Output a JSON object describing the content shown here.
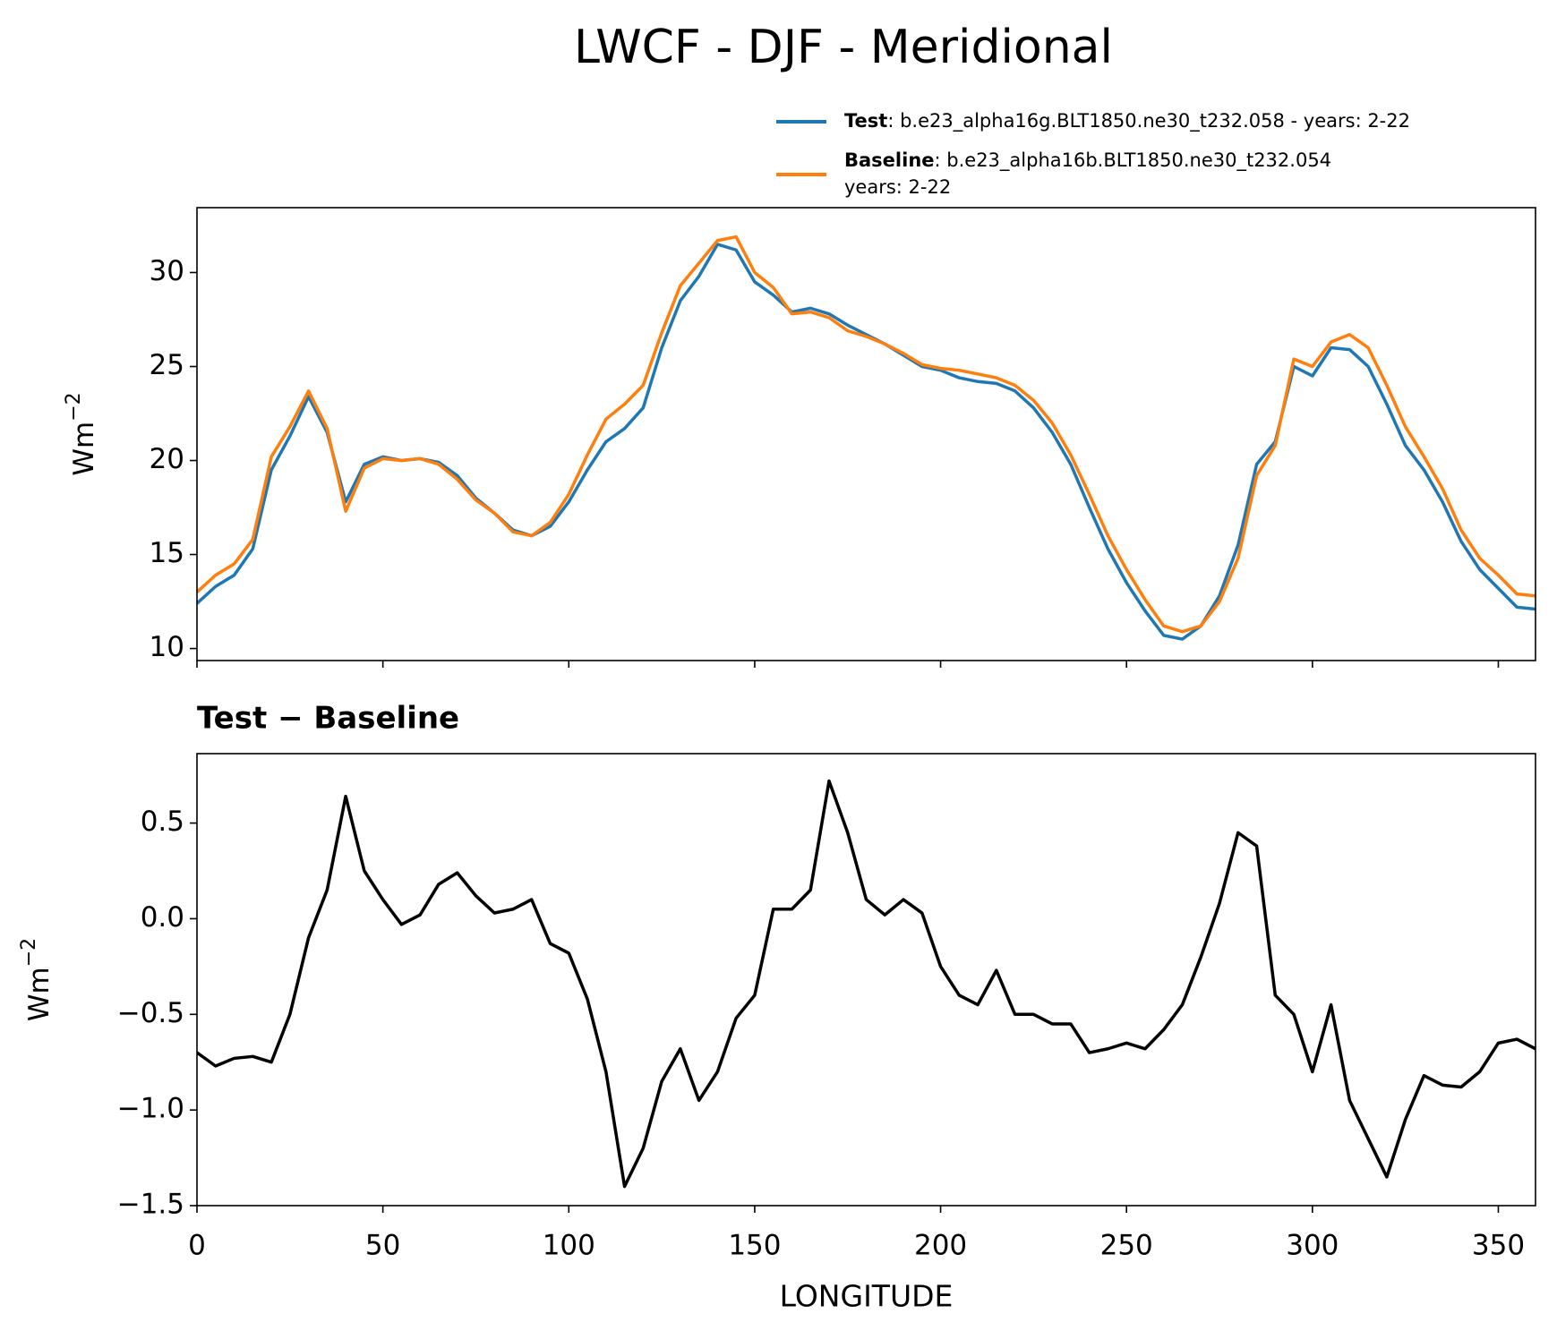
{
  "title": "LWCF - DJF - Meridional",
  "chart_data": [
    {
      "type": "line",
      "ylabel": "Wm",
      "ylabel_exponent": "−2",
      "x": [
        0,
        5,
        10,
        15,
        20,
        25,
        30,
        35,
        40,
        45,
        50,
        55,
        60,
        65,
        70,
        75,
        80,
        85,
        90,
        95,
        100,
        105,
        110,
        115,
        120,
        125,
        130,
        135,
        140,
        145,
        150,
        155,
        160,
        165,
        170,
        175,
        180,
        185,
        190,
        195,
        200,
        205,
        210,
        215,
        220,
        225,
        230,
        235,
        240,
        245,
        250,
        255,
        260,
        265,
        270,
        275,
        280,
        285,
        290,
        295,
        300,
        305,
        310,
        315,
        320,
        325,
        330,
        335,
        340,
        345,
        350,
        355,
        360
      ],
      "series": [
        {
          "name": "Test",
          "description": [
            ": b.e23_alpha16g.BLT1850.ne30_t232.058 - years: 2-22"
          ],
          "color": "#1f77b4",
          "values": [
            12.4,
            13.3,
            13.9,
            15.3,
            19.5,
            21.3,
            23.4,
            21.5,
            17.8,
            19.8,
            20.2,
            20.0,
            20.1,
            19.9,
            19.2,
            18.0,
            17.2,
            16.3,
            16.0,
            16.5,
            17.8,
            19.5,
            21.0,
            21.7,
            22.8,
            26.0,
            28.5,
            29.8,
            31.5,
            31.2,
            29.5,
            28.8,
            27.9,
            28.1,
            27.8,
            27.2,
            26.7,
            26.2,
            25.6,
            25.0,
            24.8,
            24.4,
            24.2,
            24.1,
            23.7,
            22.8,
            21.5,
            19.8,
            17.5,
            15.3,
            13.5,
            12.0,
            10.7,
            10.5,
            11.2,
            12.8,
            15.5,
            19.8,
            21.0,
            25.0,
            24.5,
            26.0,
            25.9,
            25.0,
            23.0,
            20.8,
            19.5,
            17.8,
            15.7,
            14.2,
            13.2,
            12.2,
            12.1
          ]
        },
        {
          "name": "Baseline",
          "description": [
            ": b.e23_alpha16b.BLT1850.ne30_t232.054",
            "years: 2-22"
          ],
          "color": "#ff7f0e",
          "values": [
            13.0,
            13.9,
            14.5,
            15.8,
            20.2,
            21.8,
            23.7,
            21.7,
            17.3,
            19.6,
            20.1,
            20.0,
            20.1,
            19.8,
            19.0,
            17.9,
            17.2,
            16.2,
            16.0,
            16.7,
            18.2,
            20.3,
            22.2,
            23.0,
            24.0,
            26.8,
            29.3,
            30.5,
            31.7,
            31.9,
            30.0,
            29.2,
            27.8,
            27.9,
            27.6,
            26.9,
            26.6,
            26.2,
            25.7,
            25.1,
            24.9,
            24.8,
            24.6,
            24.4,
            24.0,
            23.2,
            22.0,
            20.3,
            18.2,
            16.0,
            14.2,
            12.6,
            11.2,
            10.9,
            11.2,
            12.5,
            14.8,
            19.2,
            20.8,
            25.4,
            25.0,
            26.3,
            26.7,
            26.0,
            24.0,
            21.8,
            20.2,
            18.5,
            16.3,
            14.8,
            13.9,
            12.9,
            12.8
          ]
        }
      ],
      "xlim": [
        0,
        360
      ],
      "xticks": [
        0,
        50,
        100,
        150,
        200,
        250,
        300,
        350
      ],
      "ylim": [
        9.36,
        33.45
      ],
      "yticks": [
        10,
        15,
        20,
        25,
        30
      ]
    },
    {
      "type": "line",
      "subtitle": "Test − Baseline",
      "xlabel": "LONGITUDE",
      "ylabel": "Wm",
      "ylabel_exponent": "−2",
      "x": [
        0,
        5,
        10,
        15,
        20,
        25,
        30,
        35,
        40,
        45,
        50,
        55,
        60,
        65,
        70,
        75,
        80,
        85,
        90,
        95,
        100,
        105,
        110,
        115,
        120,
        125,
        130,
        135,
        140,
        145,
        150,
        155,
        160,
        165,
        170,
        175,
        180,
        185,
        190,
        195,
        200,
        205,
        210,
        215,
        220,
        225,
        230,
        235,
        240,
        245,
        250,
        255,
        260,
        265,
        270,
        275,
        280,
        285,
        290,
        295,
        300,
        305,
        310,
        315,
        320,
        325,
        330,
        335,
        340,
        345,
        350,
        355,
        360
      ],
      "series": [
        {
          "color": "#000000",
          "values": [
            -0.7,
            -0.77,
            -0.73,
            -0.72,
            -0.75,
            -0.5,
            -0.1,
            0.15,
            0.64,
            0.25,
            0.1,
            -0.03,
            0.02,
            0.18,
            0.24,
            0.12,
            0.03,
            0.05,
            0.1,
            -0.13,
            -0.18,
            -0.42,
            -0.8,
            -1.4,
            -1.2,
            -0.85,
            -0.68,
            -0.95,
            -0.8,
            -0.52,
            -0.4,
            0.05,
            0.05,
            0.15,
            0.72,
            0.45,
            0.1,
            0.02,
            0.1,
            0.03,
            -0.25,
            -0.4,
            -0.45,
            -0.27,
            -0.5,
            -0.5,
            -0.55,
            -0.55,
            -0.7,
            -0.68,
            -0.65,
            -0.68,
            -0.58,
            -0.45,
            -0.2,
            0.08,
            0.45,
            0.38,
            -0.4,
            -0.5,
            -0.8,
            -0.45,
            -0.95,
            -1.15,
            -1.35,
            -1.05,
            -0.82,
            -0.87,
            -0.88,
            -0.8,
            -0.65,
            -0.63,
            -0.68
          ]
        }
      ],
      "xlim": [
        0,
        360
      ],
      "xticks": [
        0,
        50,
        100,
        150,
        200,
        250,
        300,
        350
      ],
      "ylim": [
        -1.5,
        0.863
      ],
      "yticks": [
        0.5,
        {
          "value": 0,
          "label": "0.0"
        },
        {
          "value": -0.5,
          "label": "−0.5"
        },
        {
          "value": -1,
          "label": "−1.0"
        },
        {
          "value": -1.5,
          "label": "−1.5"
        }
      ]
    }
  ]
}
